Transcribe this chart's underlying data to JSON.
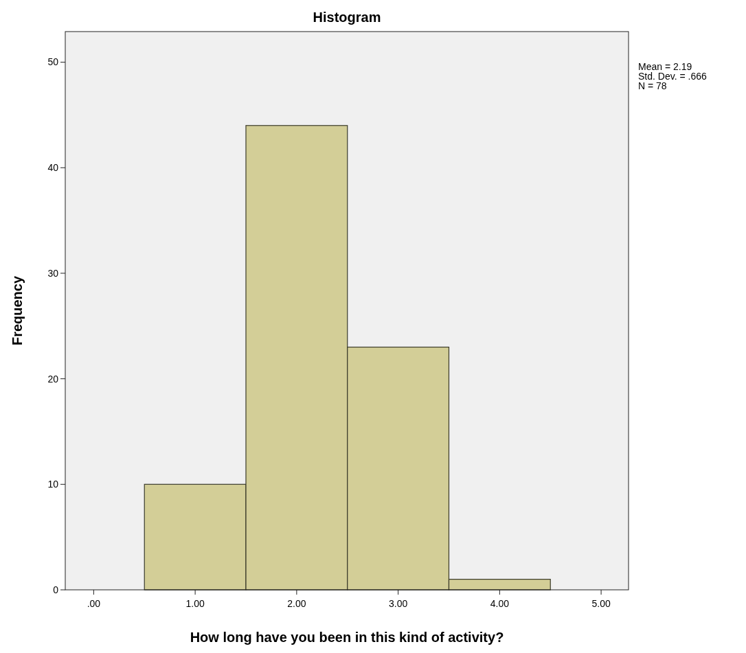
{
  "chart_data": {
    "type": "histogram",
    "title": "Histogram",
    "xlabel": "How long have you been in this kind of activity?",
    "ylabel": "Frequency",
    "bins": [
      0.5,
      1.5,
      2.5,
      3.5,
      4.5
    ],
    "values": [
      10,
      44,
      23,
      1
    ],
    "color": "#d3ce97",
    "xlim": [
      -0.28,
      5.27
    ],
    "xticks": [
      {
        "value": 0,
        "label": ".00"
      },
      {
        "value": 1,
        "label": "1.00"
      },
      {
        "value": 2,
        "label": "2.00"
      },
      {
        "value": 3,
        "label": "3.00"
      },
      {
        "value": 4,
        "label": "4.00"
      },
      {
        "value": 5,
        "label": "5.00"
      }
    ],
    "ylim": [
      0,
      52.9
    ],
    "yticks": [
      0,
      10,
      20,
      30,
      40,
      50
    ],
    "annotations": [
      "Mean = 2.19",
      "Std. Dev. = .666",
      "N = 78"
    ]
  }
}
